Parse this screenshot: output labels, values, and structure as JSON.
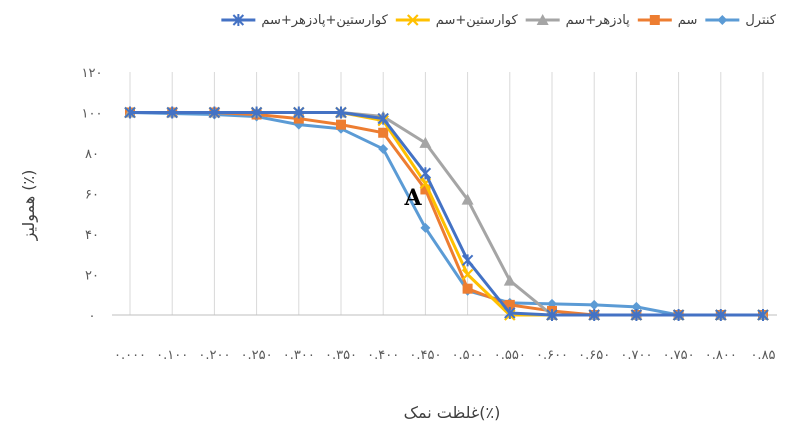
{
  "chart_data": {
    "type": "line",
    "title": "",
    "xlabel": "غلظت نمک(٪)",
    "ylabel": "همولیز (٪)",
    "ylim": [
      0,
      120
    ],
    "yticks": [
      "۰",
      "۲۰",
      "۴۰",
      "۶۰",
      "۸۰",
      "۱۰۰",
      "۱۲۰"
    ],
    "grid": "vertical",
    "legend_position": "top",
    "annotation": "A",
    "categories": [
      "۰.۰۰۰",
      "۰.۱۰۰",
      "۰.۲۰۰",
      "۰.۲۵۰",
      "۰.۳۰۰",
      "۰.۳۵۰",
      "۰.۴۰۰",
      "۰.۴۵۰",
      "۰.۵۰۰",
      "۰.۵۵۰",
      "۰.۶۰۰",
      "۰.۶۵۰",
      "۰.۷۰۰",
      "۰.۷۵۰",
      "۰.۸۰۰",
      "۰.۸۵"
    ],
    "series": [
      {
        "name": "کنترل",
        "color": "#5B9BD5",
        "marker": "diamond",
        "values": [
          100,
          99.5,
          99,
          98,
          94,
          92,
          82,
          43,
          12,
          6,
          5.5,
          5,
          4,
          0,
          0,
          0
        ]
      },
      {
        "name": "سم",
        "color": "#ED7D31",
        "marker": "square",
        "values": [
          100,
          100,
          100,
          99,
          97,
          94,
          90,
          62,
          13,
          5,
          2,
          0,
          0,
          0,
          0,
          0
        ]
      },
      {
        "name": "پادزهر+سم",
        "color": "#A5A5A5",
        "marker": "triangle",
        "values": [
          100,
          100,
          100,
          100,
          100,
          100,
          98,
          85,
          57,
          17,
          0,
          0,
          0,
          0,
          0,
          0
        ]
      },
      {
        "name": "کوارستین+سم",
        "color": "#FFC000",
        "marker": "x",
        "values": [
          100,
          100,
          100,
          100,
          100,
          100,
          96,
          65,
          20,
          0,
          0,
          0,
          0,
          0,
          0,
          0
        ]
      },
      {
        "name": "کوارستین+پادزهر+سم",
        "color": "#4472C4",
        "marker": "star",
        "values": [
          100,
          100,
          100,
          100,
          100,
          100,
          97,
          70,
          27,
          1,
          0,
          0,
          0,
          0,
          0,
          0
        ]
      }
    ]
  }
}
